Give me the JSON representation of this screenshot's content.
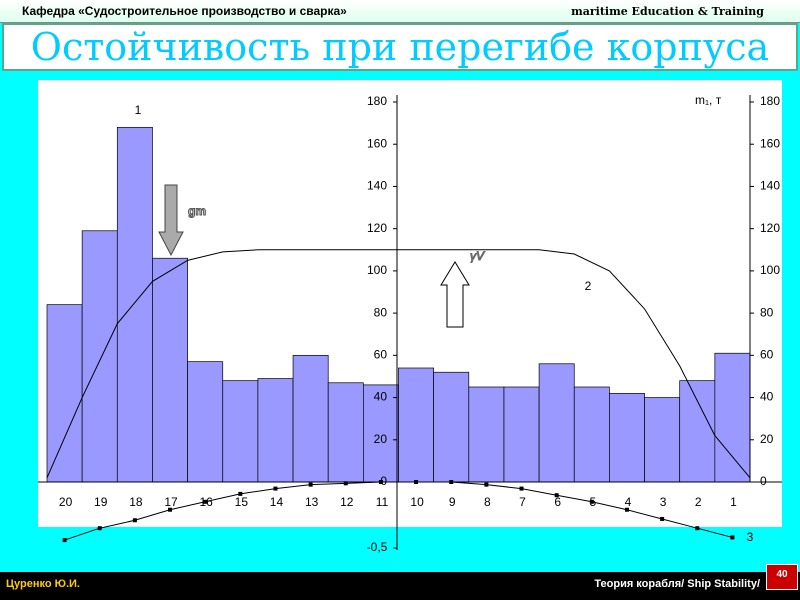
{
  "header": {
    "department": "Кафедра «Судостроительное производство и сварка»",
    "brand": "maritime Education & Training"
  },
  "title": "Остойчивость при перегибе корпуса",
  "chart_data": {
    "type": "bar",
    "categories": [
      "20",
      "19",
      "18",
      "17",
      "16",
      "15",
      "14",
      "13",
      "12",
      "11",
      "10",
      "9",
      "8",
      "7",
      "6",
      "5",
      "4",
      "3",
      "2",
      "1"
    ],
    "values": [
      84,
      119,
      168,
      106,
      57,
      48,
      49,
      60,
      47,
      46,
      54,
      52,
      45,
      45,
      56,
      45,
      42,
      40,
      48,
      61
    ],
    "color": "#9999ff",
    "buoyancy_values": [
      2,
      40,
      75,
      95,
      105,
      109,
      110,
      110,
      110,
      110,
      110,
      110,
      110,
      110,
      110,
      108,
      100,
      82,
      55,
      22,
      2
    ],
    "moment_values": [
      -0.44,
      -0.35,
      -0.29,
      -0.21,
      -0.15,
      -0.09,
      -0.05,
      -0.02,
      -0.01,
      0,
      0,
      0,
      -0.02,
      -0.05,
      -0.1,
      -0.15,
      -0.21,
      -0.28,
      -0.35,
      -0.42
    ],
    "ylim": [
      0,
      180
    ],
    "yticks": [
      0,
      20,
      40,
      60,
      80,
      100,
      120,
      140,
      160,
      180
    ],
    "y2lim": [
      0,
      180
    ],
    "y2ticks": [
      0,
      20,
      40,
      60,
      80,
      100,
      120,
      140,
      160,
      180
    ],
    "y3lim": [
      -0.5,
      0
    ],
    "y3ticks": [
      {
        "value": -0.5,
        "label": "-0,5"
      }
    ],
    "annotations": {
      "curve1": "1",
      "curve2": "2",
      "curve3": "3",
      "unit": "m₁, т",
      "gm": "gm",
      "gamma_v": "γV"
    }
  },
  "footer": {
    "author": "Цуренко Ю.И.",
    "course": "Теория корабля/ Ship Stability/",
    "page": "40"
  }
}
